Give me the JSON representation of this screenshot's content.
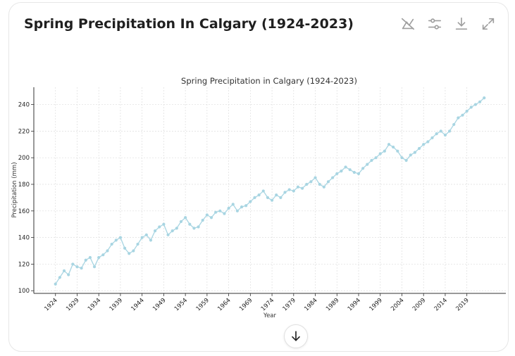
{
  "card": {
    "title": "Spring Precipitation In Calgary (1924-2023)"
  },
  "toolbar": {
    "icons": [
      "chart-toggle-icon",
      "sliders-icon",
      "download-icon",
      "expand-icon"
    ]
  },
  "colors": {
    "line": "#a8d5e2",
    "marker": "#a8d5e2",
    "grid": "#dddddd",
    "axis": "#333333",
    "icon": "#9e9e9e"
  },
  "chart_data": {
    "type": "line",
    "title": "Spring Precipitation in Calgary (1924-2023)",
    "xlabel": "Year",
    "ylabel": "Precipitation (mm)",
    "xlim": [
      1919,
      2028
    ],
    "ylim": [
      98,
      253
    ],
    "x_ticks": [
      1924,
      1929,
      1934,
      1939,
      1944,
      1949,
      1954,
      1959,
      1964,
      1969,
      1974,
      1979,
      1984,
      1989,
      1994,
      1999,
      2004,
      2009,
      2014,
      2019
    ],
    "y_ticks": [
      100,
      120,
      140,
      160,
      180,
      200,
      220,
      240
    ],
    "grid": true,
    "series": [
      {
        "x": [
          1924,
          1925,
          1926,
          1927,
          1928,
          1929,
          1930,
          1931,
          1932,
          1933,
          1934,
          1935,
          1936,
          1937,
          1938,
          1939,
          1940,
          1941,
          1942,
          1943,
          1944,
          1945,
          1946,
          1947,
          1948,
          1949,
          1950,
          1951,
          1952,
          1953,
          1954,
          1955,
          1956,
          1957,
          1958,
          1959,
          1960,
          1961,
          1962,
          1963,
          1964,
          1965,
          1966,
          1967,
          1968,
          1969,
          1970,
          1971,
          1972,
          1973,
          1974,
          1975,
          1976,
          1977,
          1978,
          1979,
          1980,
          1981,
          1982,
          1983,
          1984,
          1985,
          1986,
          1987,
          1988,
          1989,
          1990,
          1991,
          1992,
          1993,
          1994,
          1995,
          1996,
          1997,
          1998,
          1999,
          2000,
          2001,
          2002,
          2003,
          2004,
          2005,
          2006,
          2007,
          2008,
          2009,
          2010,
          2011,
          2012,
          2013,
          2014,
          2015,
          2016,
          2017,
          2018,
          2019,
          2020,
          2021,
          2022,
          2023
        ],
        "values": [
          105,
          110,
          115,
          112,
          120,
          118,
          117,
          123,
          125,
          118,
          125,
          127,
          130,
          135,
          138,
          140,
          132,
          128,
          130,
          135,
          140,
          142,
          138,
          145,
          148,
          150,
          142,
          145,
          147,
          152,
          155,
          150,
          147,
          148,
          153,
          157,
          155,
          159,
          160,
          158,
          162,
          165,
          160,
          163,
          164,
          167,
          170,
          172,
          175,
          170,
          168,
          172,
          170,
          174,
          176,
          175,
          178,
          177,
          180,
          182,
          185,
          180,
          178,
          182,
          185,
          188,
          190,
          193,
          191,
          189,
          188,
          192,
          195,
          198,
          200,
          203,
          205,
          210,
          208,
          205,
          200,
          198,
          202,
          204,
          207,
          210,
          212,
          215,
          218,
          220,
          217,
          220,
          225,
          230,
          232,
          235,
          238,
          240,
          242,
          245
        ]
      }
    ]
  }
}
